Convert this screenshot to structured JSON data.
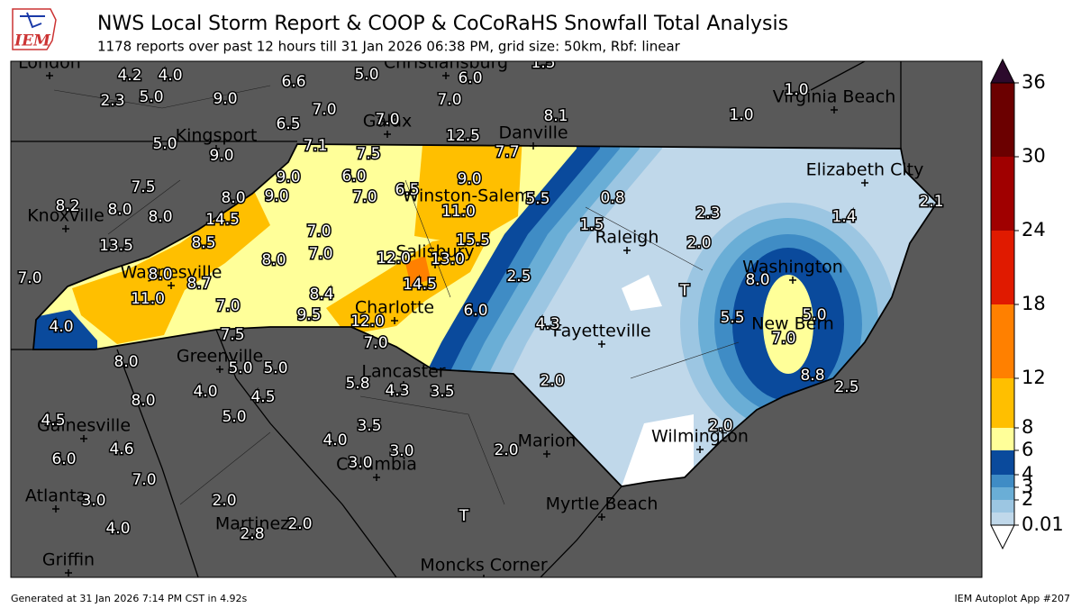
{
  "header": {
    "title": "NWS Local Storm Report & COOP & CoCoRaHS Snowfall Total Analysis",
    "subtitle": "1178 reports over past 12 hours till 31 Jan 2026 06:38 PM, grid size: 50km, Rbf: linear",
    "logo_text": "IEM"
  },
  "map": {
    "cities": [
      "London",
      "Christiansburg",
      "Virginia Beach",
      "Galax",
      "Kingsport",
      "Danville",
      "Elizabeth City",
      "Winston-Salem",
      "Knoxville",
      "Raleigh",
      "Salisbury",
      "Washington",
      "Waynesville",
      "Charlotte",
      "New Bern",
      "Fayetteville",
      "Greenville",
      "Lancaster",
      "Gainesville",
      "Wilmington",
      "Marion",
      "Columbia",
      "Atlanta",
      "Myrtle Beach",
      "Martinez",
      "Moncks Corner",
      "Griffin"
    ],
    "reports": [
      "4.2",
      "4.0",
      "2.3",
      "5.0",
      "9.0",
      "6.6",
      "5.0",
      "6.0",
      "1.5",
      "7.0",
      "7.0",
      "6.5",
      "7.0",
      "12.5",
      "8.1",
      "1.0",
      "1.0",
      "5.0",
      "9.0",
      "7.1",
      "7.5",
      "7.7",
      "6.0",
      "9.0",
      "9.0",
      "7.5",
      "8.0",
      "9.0",
      "7.0",
      "6.5",
      "5.5",
      "0.8",
      "2.1",
      "8.2",
      "8.0",
      "8.0",
      "14.5",
      "11.0",
      "2.3",
      "1.4",
      "1.5",
      "7.0",
      "15.5",
      "2.0",
      "13.5",
      "8.5",
      "7.0",
      "12.0",
      "13.0",
      "8.0",
      "8.0",
      "8.7",
      "2.5",
      "8.0",
      "7.0",
      "11.0",
      "14.5",
      "8.4",
      "T",
      "7.0",
      "9.5",
      "12.0",
      "6.0",
      "5.5",
      "5.0",
      "4.0",
      "4.3",
      "7.0",
      "7.5",
      "7.0",
      "8.0",
      "5.0",
      "5.0",
      "2.0",
      "8.8",
      "5.8",
      "4.3",
      "3.5",
      "2.5",
      "4.0",
      "4.5",
      "8.0",
      "5.0",
      "4.5",
      "3.5",
      "2.0",
      "4.0",
      "4.6",
      "3.0",
      "2.0",
      "3.0",
      "6.0",
      "7.0",
      "3.0",
      "2.0",
      "T",
      "4.0",
      "2.0",
      "2.8"
    ]
  },
  "colorbar": {
    "levels": [
      0.01,
      1,
      2,
      3,
      4,
      6,
      8,
      12,
      18,
      24,
      30,
      36
    ],
    "colors": [
      "#c0d8ea",
      "#9cc6e2",
      "#6aaed6",
      "#3f8cc5",
      "#0a4a9c",
      "#ffff99",
      "#ffbf00",
      "#ff8000",
      "#e01a00",
      "#a00000",
      "#6b0000"
    ],
    "over_color": "#2c0a2c",
    "under_color": "#ffffff",
    "ticks": [
      0.01,
      2,
      3,
      4,
      6,
      8,
      12,
      18,
      24,
      30,
      36
    ]
  },
  "footer": {
    "left": "Generated at 31 Jan 2026 7:14 PM CST in 4.92s",
    "right": "IEM Autoplot App #207"
  }
}
